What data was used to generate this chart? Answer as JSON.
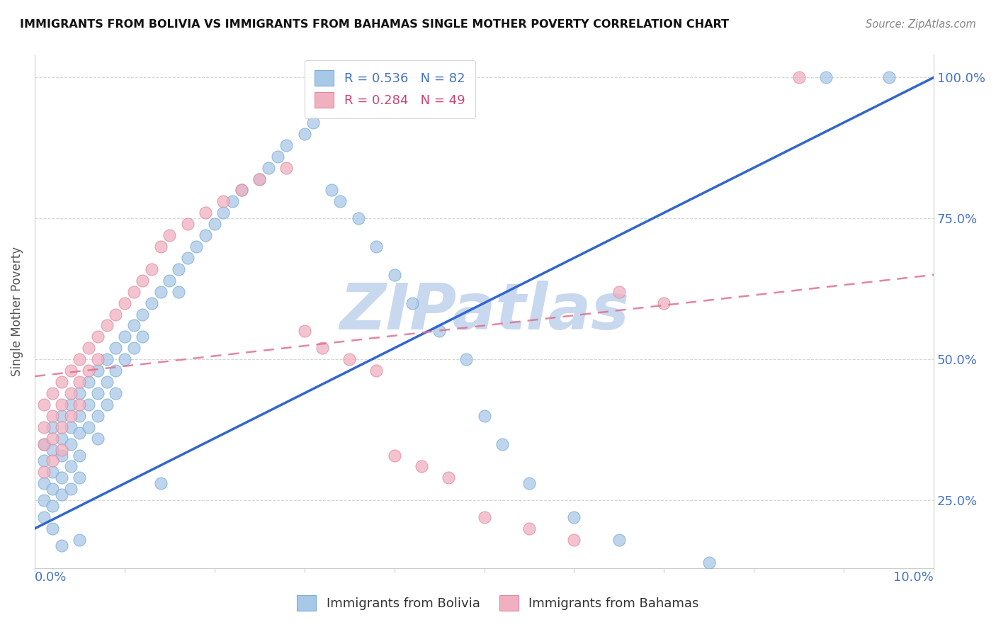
{
  "title": "IMMIGRANTS FROM BOLIVIA VS IMMIGRANTS FROM BAHAMAS SINGLE MOTHER POVERTY CORRELATION CHART",
  "source": "Source: ZipAtlas.com",
  "ylabel": "Single Mother Poverty",
  "blue_color": "#a8c8e8",
  "blue_edge_color": "#7aaed0",
  "pink_color": "#f0b0c0",
  "pink_edge_color": "#e088a0",
  "blue_line_color": "#3366cc",
  "pink_line_color": "#e07090",
  "watermark": "ZIPatlas",
  "watermark_color": "#c8d8ee",
  "xmin": 0.0,
  "xmax": 0.1,
  "ymin": 0.13,
  "ymax": 1.04,
  "y_ticks": [
    0.25,
    0.5,
    0.75,
    1.0
  ],
  "blue_line_x0": 0.0,
  "blue_line_y0": 0.2,
  "blue_line_x1": 0.1,
  "blue_line_y1": 1.0,
  "pink_line_x0": 0.0,
  "pink_line_y0": 0.47,
  "pink_line_x1": 0.1,
  "pink_line_y1": 0.65,
  "blue_scatter_x": [
    0.001,
    0.001,
    0.001,
    0.001,
    0.001,
    0.002,
    0.002,
    0.002,
    0.002,
    0.002,
    0.002,
    0.003,
    0.003,
    0.003,
    0.003,
    0.003,
    0.003,
    0.004,
    0.004,
    0.004,
    0.004,
    0.004,
    0.005,
    0.005,
    0.005,
    0.005,
    0.005,
    0.005,
    0.006,
    0.006,
    0.006,
    0.007,
    0.007,
    0.007,
    0.007,
    0.008,
    0.008,
    0.008,
    0.009,
    0.009,
    0.009,
    0.01,
    0.01,
    0.011,
    0.011,
    0.012,
    0.012,
    0.013,
    0.014,
    0.014,
    0.015,
    0.016,
    0.016,
    0.017,
    0.018,
    0.019,
    0.02,
    0.021,
    0.022,
    0.023,
    0.025,
    0.026,
    0.027,
    0.028,
    0.03,
    0.031,
    0.033,
    0.034,
    0.036,
    0.038,
    0.04,
    0.042,
    0.045,
    0.048,
    0.05,
    0.052,
    0.055,
    0.06,
    0.065,
    0.075,
    0.088,
    0.095
  ],
  "blue_scatter_y": [
    0.35,
    0.32,
    0.28,
    0.25,
    0.22,
    0.38,
    0.34,
    0.3,
    0.27,
    0.24,
    0.2,
    0.4,
    0.36,
    0.33,
    0.29,
    0.26,
    0.17,
    0.42,
    0.38,
    0.35,
    0.31,
    0.27,
    0.44,
    0.4,
    0.37,
    0.33,
    0.29,
    0.18,
    0.46,
    0.42,
    0.38,
    0.48,
    0.44,
    0.4,
    0.36,
    0.5,
    0.46,
    0.42,
    0.52,
    0.48,
    0.44,
    0.54,
    0.5,
    0.56,
    0.52,
    0.58,
    0.54,
    0.6,
    0.62,
    0.28,
    0.64,
    0.66,
    0.62,
    0.68,
    0.7,
    0.72,
    0.74,
    0.76,
    0.78,
    0.8,
    0.82,
    0.84,
    0.86,
    0.88,
    0.9,
    0.92,
    0.8,
    0.78,
    0.75,
    0.7,
    0.65,
    0.6,
    0.55,
    0.5,
    0.4,
    0.35,
    0.28,
    0.22,
    0.18,
    0.14,
    1.0,
    1.0
  ],
  "pink_scatter_x": [
    0.001,
    0.001,
    0.001,
    0.001,
    0.002,
    0.002,
    0.002,
    0.002,
    0.003,
    0.003,
    0.003,
    0.003,
    0.004,
    0.004,
    0.004,
    0.005,
    0.005,
    0.005,
    0.006,
    0.006,
    0.007,
    0.007,
    0.008,
    0.009,
    0.01,
    0.011,
    0.012,
    0.013,
    0.014,
    0.015,
    0.017,
    0.019,
    0.021,
    0.023,
    0.025,
    0.028,
    0.03,
    0.032,
    0.035,
    0.038,
    0.04,
    0.043,
    0.046,
    0.05,
    0.055,
    0.06,
    0.065,
    0.07,
    0.085
  ],
  "pink_scatter_y": [
    0.42,
    0.38,
    0.35,
    0.3,
    0.44,
    0.4,
    0.36,
    0.32,
    0.46,
    0.42,
    0.38,
    0.34,
    0.48,
    0.44,
    0.4,
    0.5,
    0.46,
    0.42,
    0.52,
    0.48,
    0.54,
    0.5,
    0.56,
    0.58,
    0.6,
    0.62,
    0.64,
    0.66,
    0.7,
    0.72,
    0.74,
    0.76,
    0.78,
    0.8,
    0.82,
    0.84,
    0.55,
    0.52,
    0.5,
    0.48,
    0.33,
    0.31,
    0.29,
    0.22,
    0.2,
    0.18,
    0.62,
    0.6,
    1.0
  ]
}
